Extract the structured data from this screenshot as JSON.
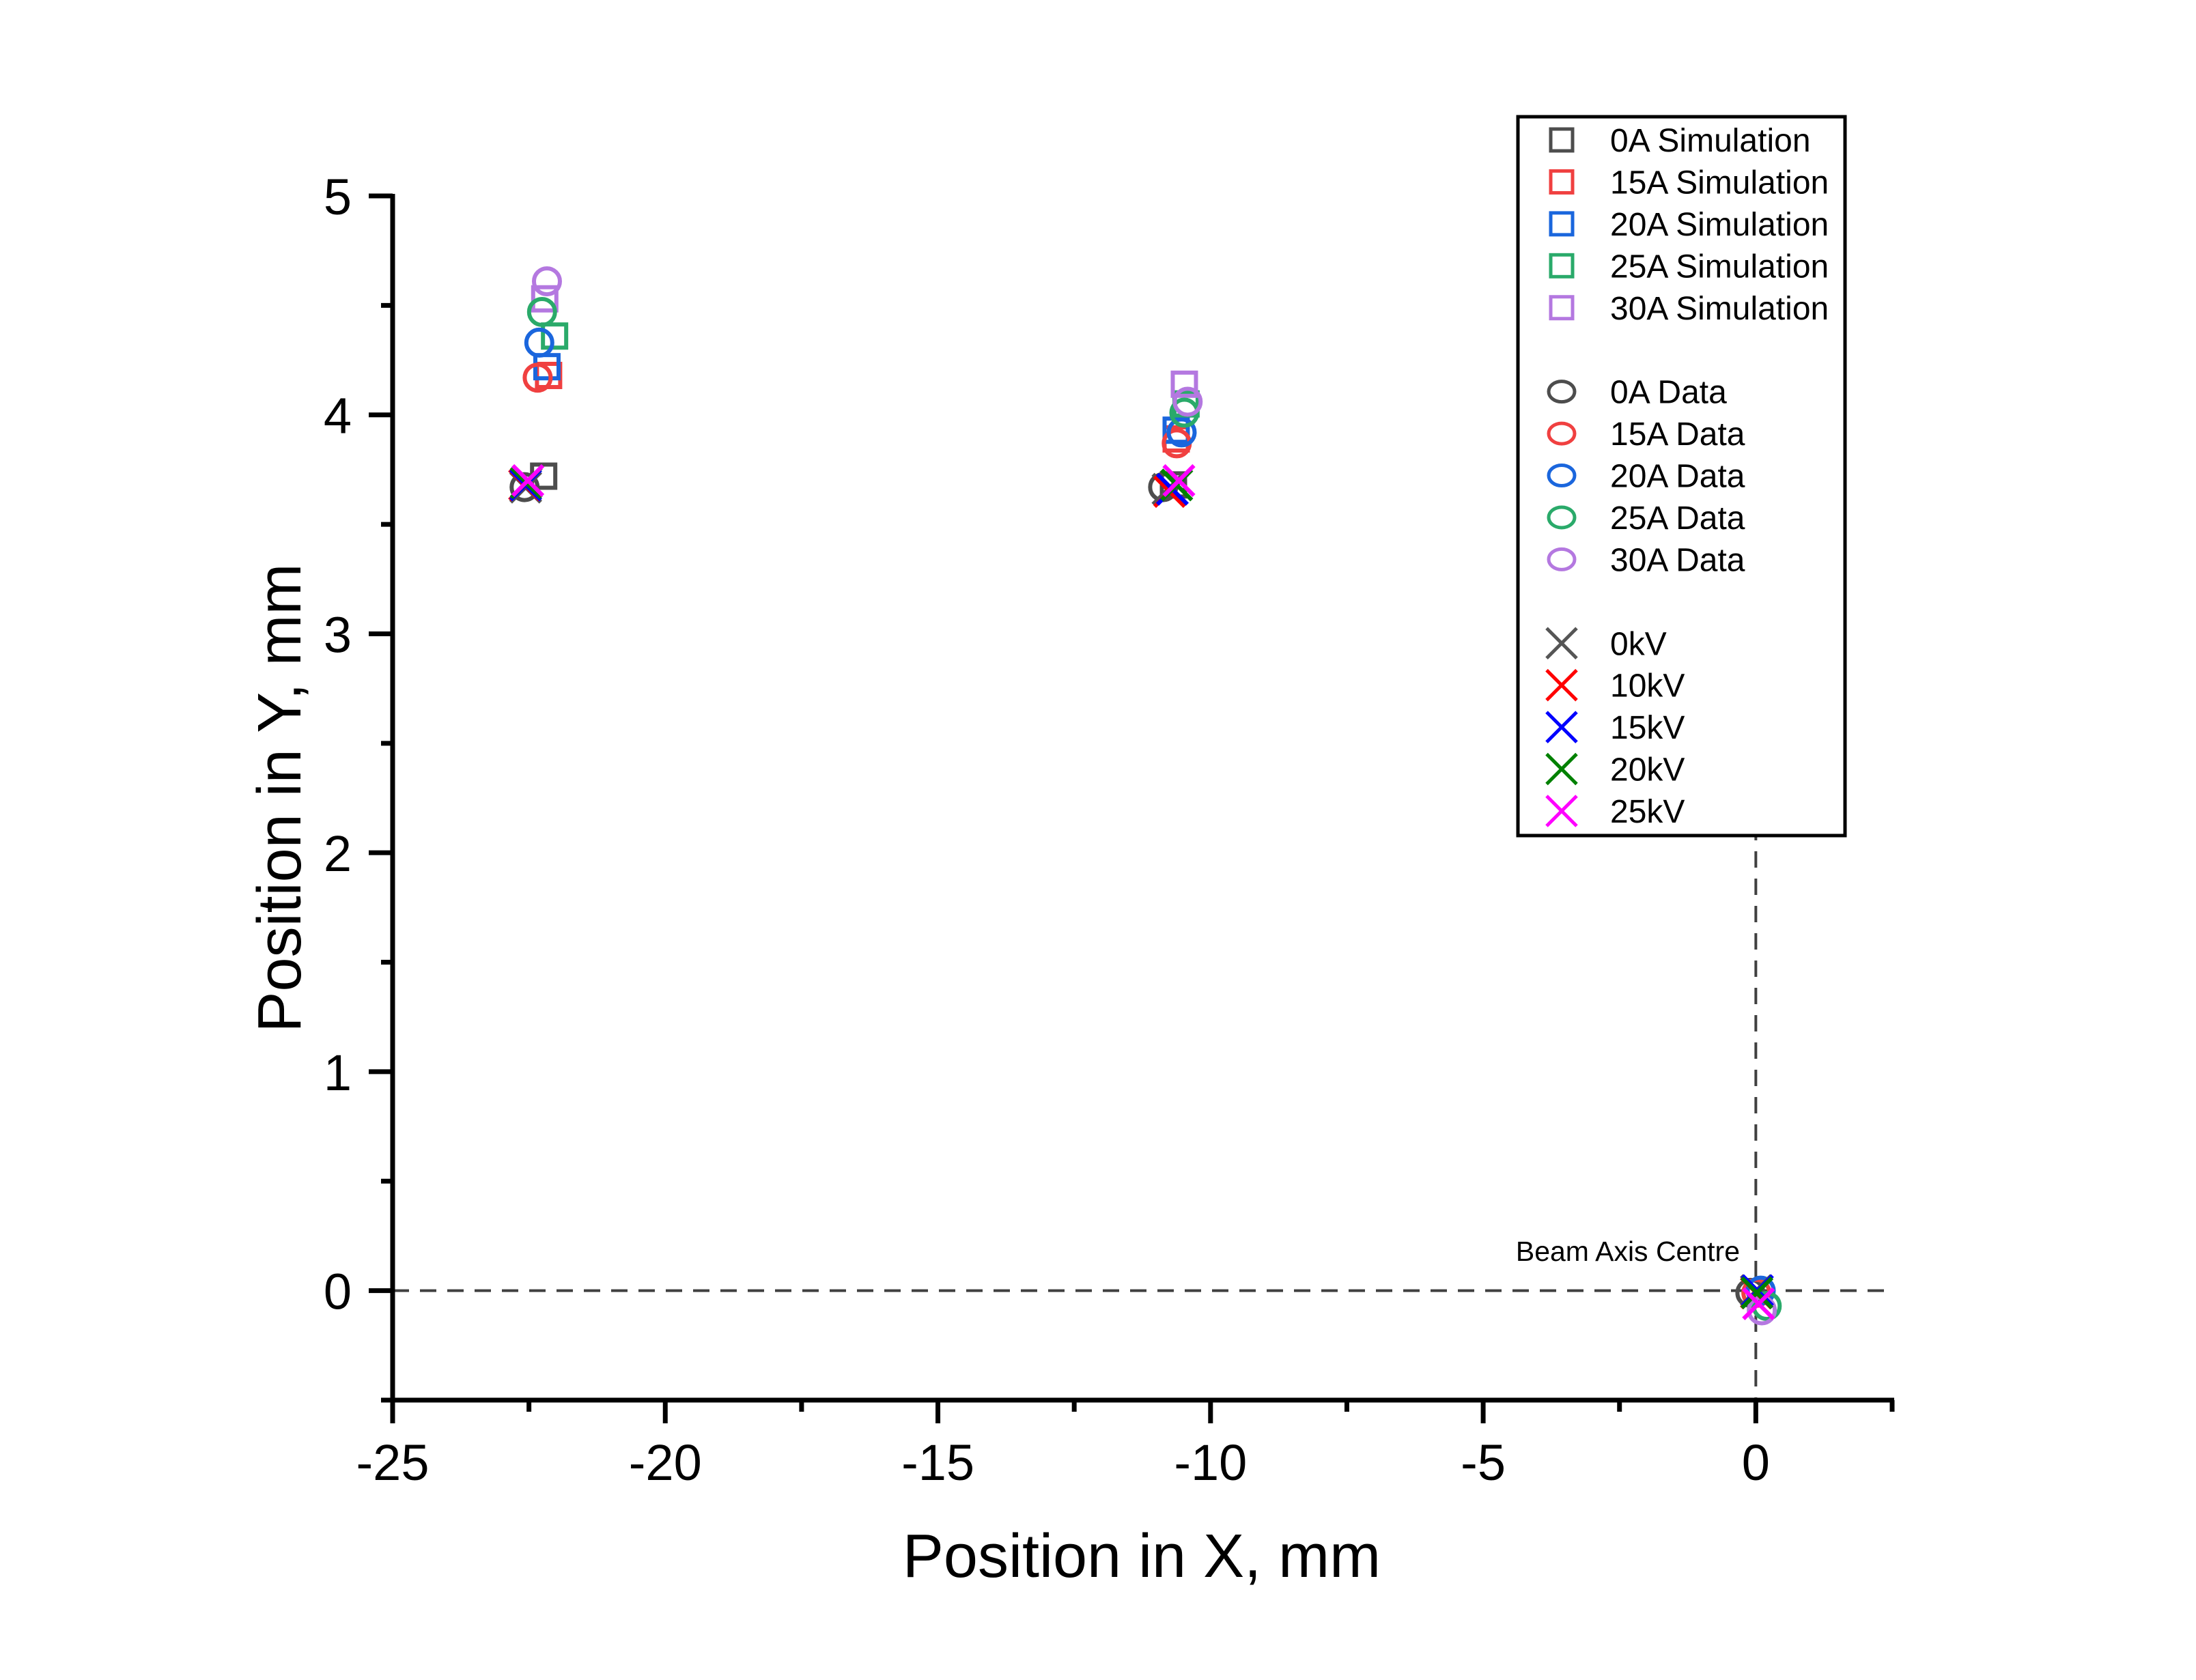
{
  "chart_data": {
    "type": "scatter",
    "title": "",
    "xlabel": "Position in X, mm",
    "ylabel": "Position in Y, mm",
    "xlim": [
      -25,
      2.5
    ],
    "ylim": [
      -0.5,
      5
    ],
    "x_ticks": [
      -25,
      -20,
      -15,
      -10,
      -5,
      0
    ],
    "x_tick_labels": [
      "-25",
      "-20",
      "-15",
      "-10",
      "-5",
      "0"
    ],
    "x_minor_ticks": [
      -22.5,
      -17.5,
      -12.5,
      -7.5,
      -2.5,
      2.5
    ],
    "y_ticks": [
      0,
      1,
      2,
      3,
      4,
      5
    ],
    "y_tick_labels": [
      "0",
      "1",
      "2",
      "3",
      "4",
      "5"
    ],
    "y_minor_ticks": [
      -0.5,
      0.5,
      1.5,
      2.5,
      3.5,
      4.5
    ],
    "grid": false,
    "legend_position": "top-right",
    "reference_lines": [
      {
        "orientation": "horizontal",
        "value": 0,
        "style": "dashed",
        "color": "#404040"
      },
      {
        "orientation": "vertical",
        "value": 0,
        "style": "dashed",
        "color": "#404040"
      }
    ],
    "annotations": [
      {
        "text": "Beam Axis Centre",
        "x": 0,
        "y": 0,
        "position": "upper-left"
      }
    ],
    "series": [
      {
        "name": "0A Simulation",
        "marker": "square",
        "color": "#4d4d4d",
        "points": [
          [
            -22.23,
            3.72
          ],
          [
            -10.68,
            3.68
          ]
        ]
      },
      {
        "name": "15A Simulation",
        "marker": "square",
        "color": "#f04040",
        "points": [
          [
            -22.14,
            4.18
          ],
          [
            -10.63,
            3.89
          ]
        ]
      },
      {
        "name": "20A Simulation",
        "marker": "square",
        "color": "#1a66dd",
        "points": [
          [
            -22.17,
            4.22
          ],
          [
            -10.63,
            3.93
          ]
        ]
      },
      {
        "name": "25A Simulation",
        "marker": "square",
        "color": "#2aaa6a",
        "points": [
          [
            -22.03,
            4.36
          ],
          [
            -10.45,
            4.05
          ]
        ]
      },
      {
        "name": "30A Simulation",
        "marker": "square",
        "color": "#b478e0",
        "points": [
          [
            -22.21,
            4.53
          ],
          [
            -10.48,
            4.14
          ]
        ]
      },
      {
        "name": "0A Data",
        "marker": "circle",
        "color": "#4d4d4d",
        "points": [
          [
            -22.58,
            3.67
          ],
          [
            -10.87,
            3.67
          ],
          [
            -0.1,
            -0.01
          ]
        ]
      },
      {
        "name": "15A Data",
        "marker": "circle",
        "color": "#f04040",
        "points": [
          [
            -22.34,
            4.17
          ],
          [
            -10.62,
            3.87
          ],
          [
            0.01,
            -0.01
          ]
        ]
      },
      {
        "name": "20A Data",
        "marker": "circle",
        "color": "#1a66dd",
        "points": [
          [
            -22.31,
            4.33
          ],
          [
            -10.53,
            3.92
          ],
          [
            0.09,
            0.0
          ]
        ]
      },
      {
        "name": "25A Data",
        "marker": "circle",
        "color": "#2aaa6a",
        "points": [
          [
            -22.26,
            4.47
          ],
          [
            -10.48,
            4.01
          ],
          [
            0.2,
            -0.07
          ]
        ]
      },
      {
        "name": "30A Data",
        "marker": "circle",
        "color": "#b478e0",
        "points": [
          [
            -22.17,
            4.61
          ],
          [
            -10.42,
            4.06
          ],
          [
            0.11,
            -0.09
          ]
        ]
      },
      {
        "name": "0kV",
        "marker": "cross",
        "color": "#555555",
        "points": [
          [
            -22.56,
            3.67
          ],
          [
            -10.78,
            3.66
          ],
          [
            0.01,
            0.0
          ]
        ]
      },
      {
        "name": "10kV",
        "marker": "cross",
        "color": "#ff0000",
        "points": [
          [
            -22.58,
            3.68
          ],
          [
            -10.75,
            3.65
          ],
          [
            0.01,
            -0.01
          ]
        ]
      },
      {
        "name": "15kV",
        "marker": "cross",
        "color": "#0000ff",
        "points": [
          [
            -22.56,
            3.68
          ],
          [
            -10.7,
            3.66
          ],
          [
            0.03,
            0.0
          ]
        ]
      },
      {
        "name": "20kV",
        "marker": "cross",
        "color": "#008000",
        "points": [
          [
            -22.55,
            3.69
          ],
          [
            -10.62,
            3.68
          ],
          [
            0.02,
            -0.01
          ]
        ]
      },
      {
        "name": "25kV",
        "marker": "cross",
        "color": "#ff00ff",
        "points": [
          [
            -22.52,
            3.7
          ],
          [
            -10.58,
            3.7
          ],
          [
            0.05,
            -0.06
          ]
        ]
      }
    ],
    "legend_groups": [
      [
        "0A Simulation",
        "15A Simulation",
        "20A Simulation",
        "25A Simulation",
        "30A Simulation"
      ],
      [
        "0A Data",
        "15A Data",
        "20A Data",
        "25A Data",
        "30A Data"
      ],
      [
        "0kV",
        "10kV",
        "15kV",
        "20kV",
        "25kV"
      ]
    ]
  }
}
